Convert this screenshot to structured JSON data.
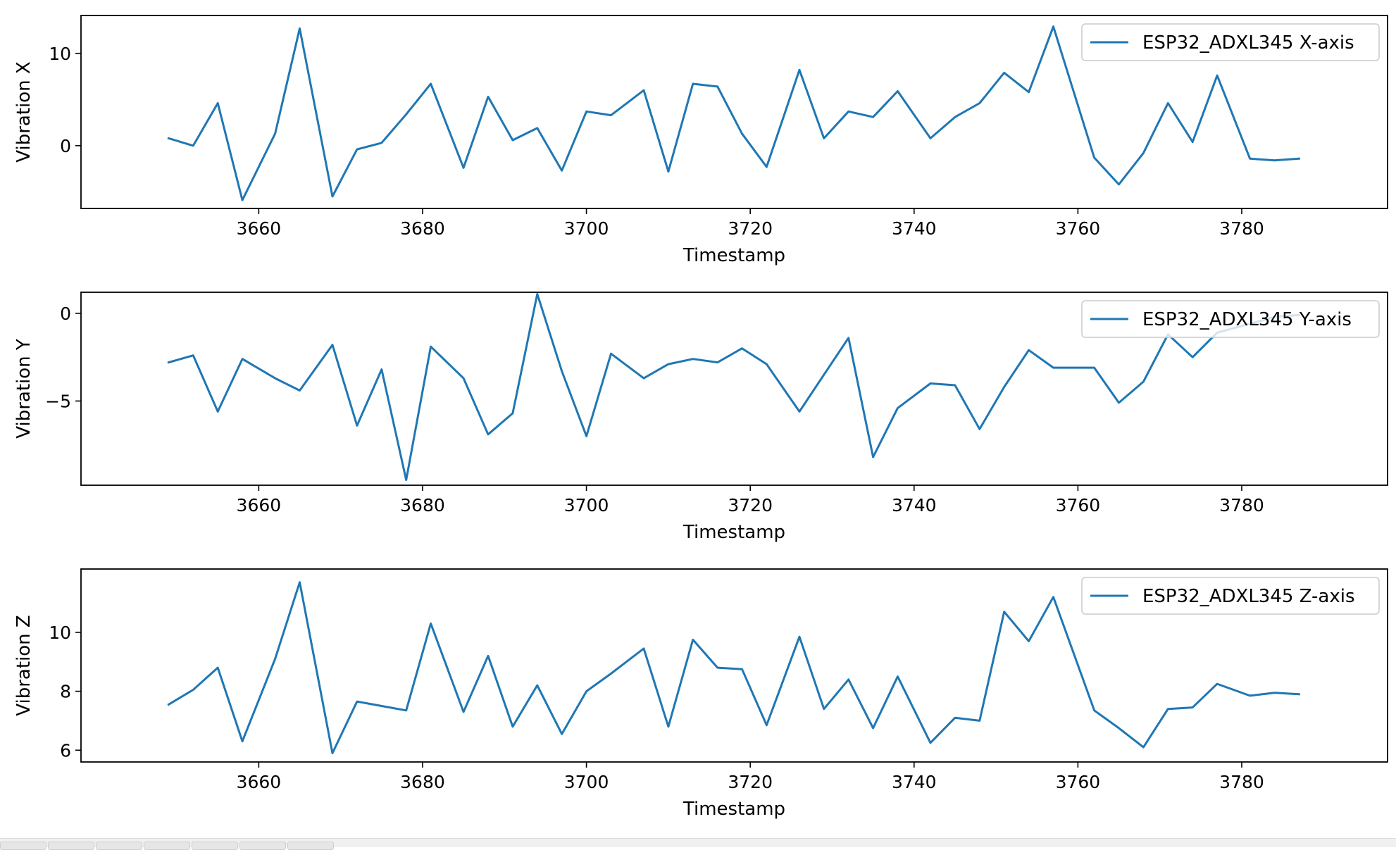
{
  "colors": {
    "line": "#1f77b4"
  },
  "chart_data": [
    {
      "type": "line",
      "title": "",
      "xlabel": "Timestamp",
      "ylabel": "Vibration X",
      "xlim": [
        3638.3,
        3797.8
      ],
      "ylim": [
        -6.8,
        14.1
      ],
      "xticks": [
        3660,
        3680,
        3700,
        3720,
        3740,
        3760,
        3780
      ],
      "yticks": [
        0,
        10
      ],
      "ytick_labels": [
        "0",
        "10"
      ],
      "legend_position": "top-right",
      "series": [
        {
          "name": "ESP32_ADXL345 X-axis",
          "x": [
            3649,
            3652,
            3655,
            3658,
            3662,
            3665,
            3669,
            3672,
            3675,
            3678,
            3681,
            3685,
            3688,
            3691,
            3694,
            3697,
            3700,
            3703,
            3707,
            3710,
            3713,
            3716,
            3719,
            3722,
            3726,
            3729,
            3732,
            3735,
            3738,
            3742,
            3745,
            3748,
            3751,
            3754,
            3757,
            3762,
            3765,
            3768,
            3771,
            3774,
            3777,
            3781,
            3784,
            3787
          ],
          "values": [
            0.8,
            0.0,
            4.6,
            -5.9,
            1.3,
            12.7,
            -5.5,
            -0.4,
            0.3,
            3.4,
            6.7,
            -2.4,
            5.3,
            0.6,
            1.9,
            -2.7,
            3.7,
            3.3,
            6.0,
            -2.8,
            6.7,
            6.4,
            1.3,
            -2.3,
            8.2,
            0.8,
            3.7,
            3.1,
            5.9,
            0.8,
            3.1,
            4.6,
            7.9,
            5.8,
            12.9,
            -1.3,
            -4.2,
            -0.8,
            4.6,
            0.4,
            7.6,
            -1.4,
            -1.6,
            -1.4
          ]
        }
      ]
    },
    {
      "type": "line",
      "title": "",
      "xlabel": "Timestamp",
      "ylabel": "Vibration Y",
      "xlim": [
        3638.3,
        3797.8
      ],
      "ylim": [
        -9.8,
        1.2
      ],
      "xticks": [
        3660,
        3680,
        3700,
        3720,
        3740,
        3760,
        3780
      ],
      "yticks": [
        -5,
        0
      ],
      "ytick_labels": [
        "−5",
        "0"
      ],
      "legend_position": "top-right",
      "series": [
        {
          "name": "ESP32_ADXL345 Y-axis",
          "x": [
            3649,
            3652,
            3655,
            3658,
            3662,
            3665,
            3669,
            3672,
            3675,
            3678,
            3681,
            3685,
            3688,
            3691,
            3694,
            3697,
            3700,
            3703,
            3707,
            3710,
            3713,
            3716,
            3719,
            3722,
            3726,
            3729,
            3732,
            3735,
            3738,
            3742,
            3745,
            3748,
            3751,
            3754,
            3757,
            3762,
            3765,
            3768,
            3771,
            3774,
            3777,
            3781,
            3784,
            3787
          ],
          "values": [
            -2.8,
            -2.4,
            -5.6,
            -2.6,
            -3.7,
            -4.4,
            -1.8,
            -6.4,
            -3.2,
            -9.5,
            -1.9,
            -3.7,
            -6.9,
            -5.7,
            1.1,
            -3.3,
            -7.0,
            -2.3,
            -3.7,
            -2.9,
            -2.6,
            -2.8,
            -2.0,
            -2.9,
            -5.6,
            -3.5,
            -1.4,
            -8.2,
            -5.4,
            -4.0,
            -4.1,
            -6.6,
            -4.2,
            -2.1,
            -3.1,
            -3.1,
            -5.1,
            -3.9,
            -1.2,
            -2.5,
            -1.1,
            -0.6,
            -0.2,
            -0.1
          ]
        }
      ]
    },
    {
      "type": "line",
      "title": "",
      "xlabel": "Timestamp",
      "ylabel": "Vibration Z",
      "xlim": [
        3638.3,
        3797.8
      ],
      "ylim": [
        5.6,
        12.15
      ],
      "xticks": [
        3660,
        3680,
        3700,
        3720,
        3740,
        3760,
        3780
      ],
      "yticks": [
        6,
        8,
        10
      ],
      "ytick_labels": [
        "6",
        "8",
        "10"
      ],
      "legend_position": "top-right",
      "series": [
        {
          "name": "ESP32_ADXL345 Z-axis",
          "x": [
            3649,
            3652,
            3655,
            3658,
            3662,
            3665,
            3669,
            3672,
            3675,
            3678,
            3681,
            3685,
            3688,
            3691,
            3694,
            3697,
            3700,
            3703,
            3707,
            3710,
            3713,
            3716,
            3719,
            3722,
            3726,
            3729,
            3732,
            3735,
            3738,
            3742,
            3745,
            3748,
            3751,
            3754,
            3757,
            3762,
            3765,
            3768,
            3771,
            3774,
            3777,
            3781,
            3784,
            3787
          ],
          "values": [
            7.55,
            8.05,
            8.8,
            6.3,
            9.1,
            11.7,
            5.9,
            7.65,
            7.5,
            7.35,
            10.3,
            7.3,
            9.2,
            6.8,
            8.2,
            6.55,
            8.0,
            8.6,
            9.45,
            6.8,
            9.75,
            8.8,
            8.75,
            6.85,
            9.85,
            7.4,
            8.4,
            6.75,
            8.5,
            6.25,
            7.1,
            7.0,
            10.7,
            9.7,
            11.2,
            7.35,
            6.75,
            6.1,
            7.4,
            7.45,
            8.25,
            7.85,
            7.95,
            7.9
          ]
        }
      ]
    }
  ]
}
